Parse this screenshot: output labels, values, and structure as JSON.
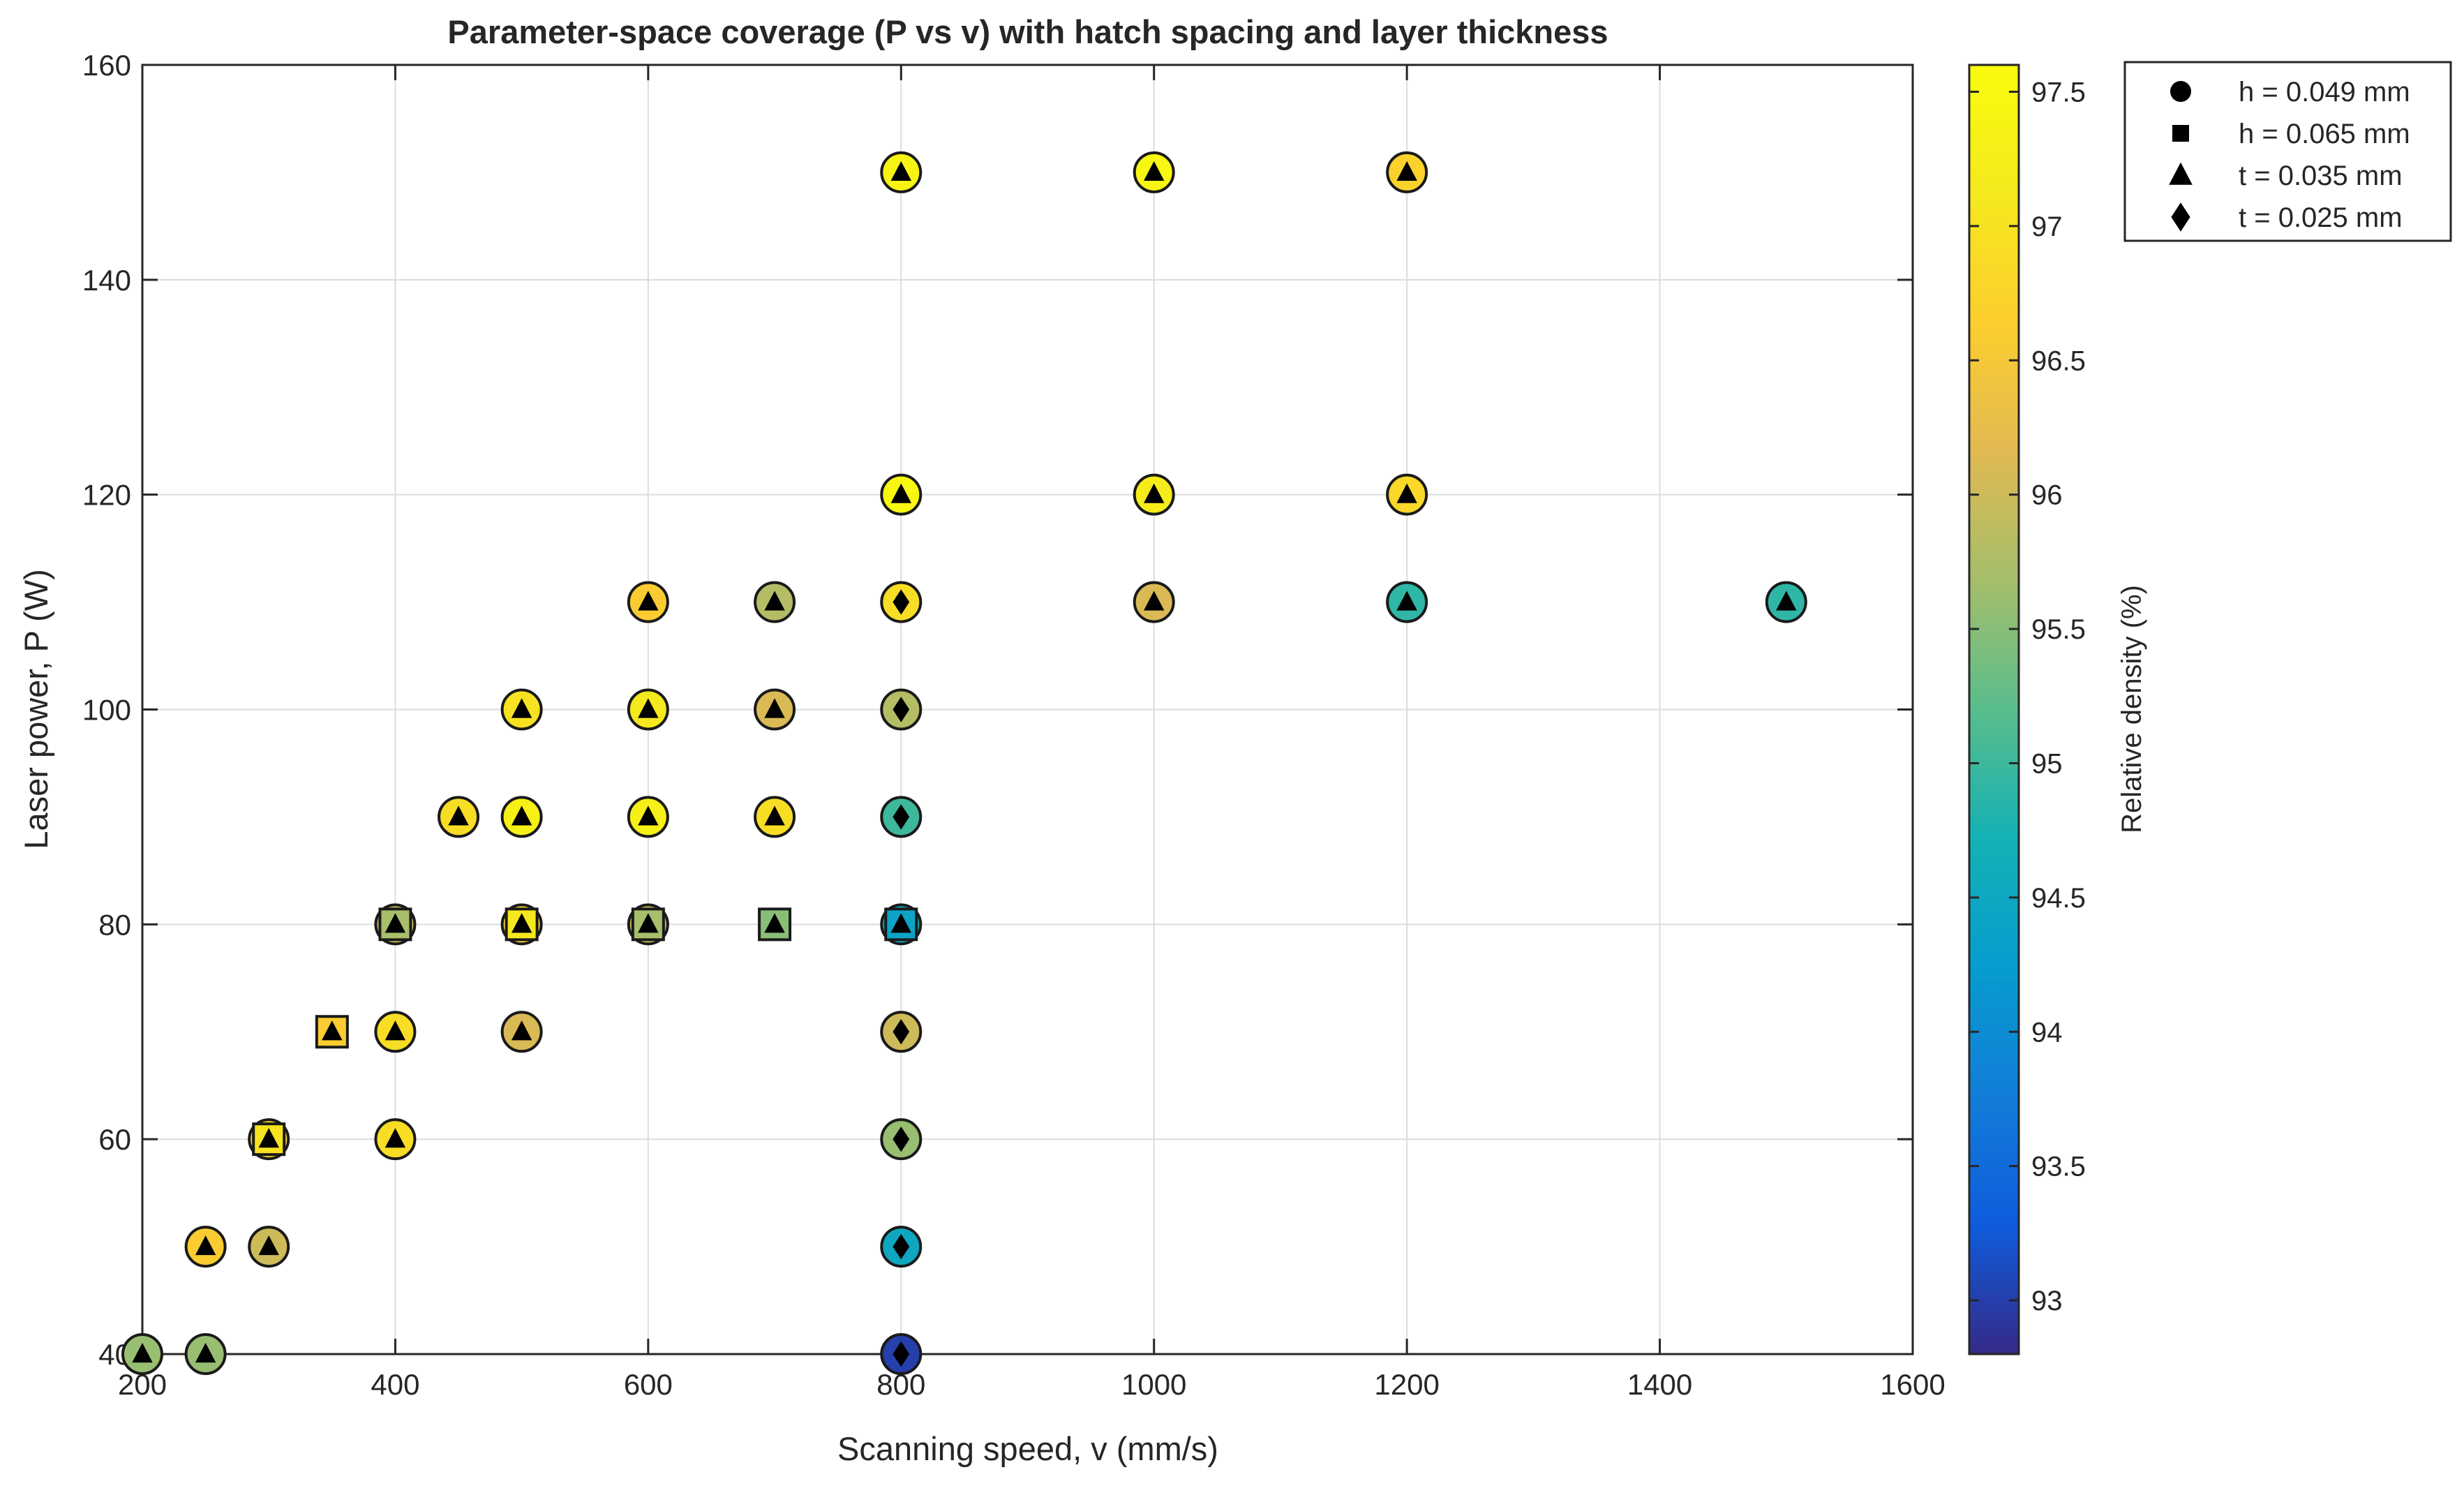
{
  "chart_data": {
    "type": "scatter",
    "title": "Parameter-space coverage (P vs v) with hatch spacing and layer thickness",
    "xlabel": "Scanning speed, v (mm/s)",
    "ylabel": "Laser power, P (W)",
    "xlim": [
      200,
      1600
    ],
    "ylim": [
      40,
      160
    ],
    "xticks": [
      "200",
      "400",
      "600",
      "800",
      "1000",
      "1200",
      "1400",
      "1600"
    ],
    "yticks": [
      "40",
      "60",
      "80",
      "100",
      "120",
      "140",
      "160"
    ],
    "grid": true,
    "legend_position": "outside-top-right",
    "colorbar": {
      "label": "Relative density (%)",
      "range": [
        92.8,
        97.6
      ],
      "ticks": [
        "93",
        "93.5",
        "94",
        "94.5",
        "95",
        "95.5",
        "96",
        "96.5",
        "97",
        "97.5"
      ],
      "colormap": "parula"
    },
    "legend": [
      {
        "label": "h = 0.049 mm",
        "marker": "circle"
      },
      {
        "label": "h = 0.065 mm",
        "marker": "square"
      },
      {
        "label": "t = 0.035 mm",
        "marker": "triangle"
      },
      {
        "label": "t = 0.025 mm",
        "marker": "diamond"
      }
    ],
    "points": [
      {
        "v": 200,
        "P": 40,
        "density": 95.6,
        "hatch": "circle",
        "layer": "triangle"
      },
      {
        "v": 250,
        "P": 40,
        "density": 95.6,
        "hatch": "circle",
        "layer": "triangle"
      },
      {
        "v": 250,
        "P": 50,
        "density": 96.6,
        "hatch": "circle",
        "layer": "triangle"
      },
      {
        "v": 300,
        "P": 50,
        "density": 96.0,
        "hatch": "circle",
        "layer": "triangle"
      },
      {
        "v": 300,
        "P": 60,
        "density": 96.8,
        "hatch": "circle",
        "layer": "triangle"
      },
      {
        "v": 300,
        "P": 60,
        "density": 97.0,
        "hatch": "square",
        "layer": "triangle"
      },
      {
        "v": 350,
        "P": 70,
        "density": 96.6,
        "hatch": "square",
        "layer": "triangle"
      },
      {
        "v": 400,
        "P": 60,
        "density": 96.9,
        "hatch": "circle",
        "layer": "triangle"
      },
      {
        "v": 400,
        "P": 70,
        "density": 96.9,
        "hatch": "circle",
        "layer": "triangle"
      },
      {
        "v": 400,
        "P": 80,
        "density": 96.0,
        "hatch": "circle",
        "layer": "triangle"
      },
      {
        "v": 400,
        "P": 80,
        "density": 95.7,
        "hatch": "square",
        "layer": "triangle"
      },
      {
        "v": 450,
        "P": 90,
        "density": 96.9,
        "hatch": "circle",
        "layer": "triangle"
      },
      {
        "v": 500,
        "P": 70,
        "density": 96.1,
        "hatch": "circle",
        "layer": "triangle"
      },
      {
        "v": 500,
        "P": 80,
        "density": 96.8,
        "hatch": "circle",
        "layer": "triangle"
      },
      {
        "v": 500,
        "P": 80,
        "density": 97.1,
        "hatch": "square",
        "layer": "triangle"
      },
      {
        "v": 500,
        "P": 90,
        "density": 97.3,
        "hatch": "circle",
        "layer": "triangle"
      },
      {
        "v": 500,
        "P": 100,
        "density": 97.0,
        "hatch": "circle",
        "layer": "triangle"
      },
      {
        "v": 600,
        "P": 80,
        "density": 96.0,
        "hatch": "circle",
        "layer": "triangle"
      },
      {
        "v": 600,
        "P": 80,
        "density": 95.7,
        "hatch": "square",
        "layer": "triangle"
      },
      {
        "v": 600,
        "P": 90,
        "density": 97.3,
        "hatch": "circle",
        "layer": "triangle"
      },
      {
        "v": 600,
        "P": 100,
        "density": 97.1,
        "hatch": "circle",
        "layer": "triangle"
      },
      {
        "v": 600,
        "P": 110,
        "density": 96.6,
        "hatch": "circle",
        "layer": "triangle"
      },
      {
        "v": 700,
        "P": 80,
        "density": 95.5,
        "hatch": "square",
        "layer": "triangle"
      },
      {
        "v": 700,
        "P": 90,
        "density": 96.9,
        "hatch": "circle",
        "layer": "triangle"
      },
      {
        "v": 700,
        "P": 100,
        "density": 96.1,
        "hatch": "circle",
        "layer": "triangle"
      },
      {
        "v": 700,
        "P": 110,
        "density": 95.8,
        "hatch": "circle",
        "layer": "triangle"
      },
      {
        "v": 800,
        "P": 40,
        "density": 93.0,
        "hatch": "circle",
        "layer": "diamond"
      },
      {
        "v": 800,
        "P": 50,
        "density": 94.5,
        "hatch": "circle",
        "layer": "diamond"
      },
      {
        "v": 800,
        "P": 60,
        "density": 95.6,
        "hatch": "circle",
        "layer": "diamond"
      },
      {
        "v": 800,
        "P": 70,
        "density": 96.0,
        "hatch": "circle",
        "layer": "diamond"
      },
      {
        "v": 800,
        "P": 80,
        "density": 94.6,
        "hatch": "circle",
        "layer": "triangle"
      },
      {
        "v": 800,
        "P": 80,
        "density": 94.4,
        "hatch": "square",
        "layer": "triangle"
      },
      {
        "v": 800,
        "P": 90,
        "density": 95.0,
        "hatch": "circle",
        "layer": "diamond"
      },
      {
        "v": 800,
        "P": 100,
        "density": 95.8,
        "hatch": "circle",
        "layer": "diamond"
      },
      {
        "v": 800,
        "P": 110,
        "density": 96.9,
        "hatch": "circle",
        "layer": "diamond"
      },
      {
        "v": 800,
        "P": 120,
        "density": 97.5,
        "hatch": "circle",
        "layer": "triangle"
      },
      {
        "v": 800,
        "P": 150,
        "density": 97.4,
        "hatch": "circle",
        "layer": "triangle"
      },
      {
        "v": 1000,
        "P": 110,
        "density": 96.1,
        "hatch": "circle",
        "layer": "triangle"
      },
      {
        "v": 1000,
        "P": 120,
        "density": 97.2,
        "hatch": "circle",
        "layer": "triangle"
      },
      {
        "v": 1000,
        "P": 150,
        "density": 97.5,
        "hatch": "circle",
        "layer": "triangle"
      },
      {
        "v": 1200,
        "P": 110,
        "density": 94.9,
        "hatch": "circle",
        "layer": "triangle"
      },
      {
        "v": 1200,
        "P": 120,
        "density": 96.8,
        "hatch": "circle",
        "layer": "triangle"
      },
      {
        "v": 1200,
        "P": 150,
        "density": 96.7,
        "hatch": "circle",
        "layer": "triangle"
      },
      {
        "v": 1500,
        "P": 110,
        "density": 94.9,
        "hatch": "circle",
        "layer": "triangle"
      }
    ]
  }
}
